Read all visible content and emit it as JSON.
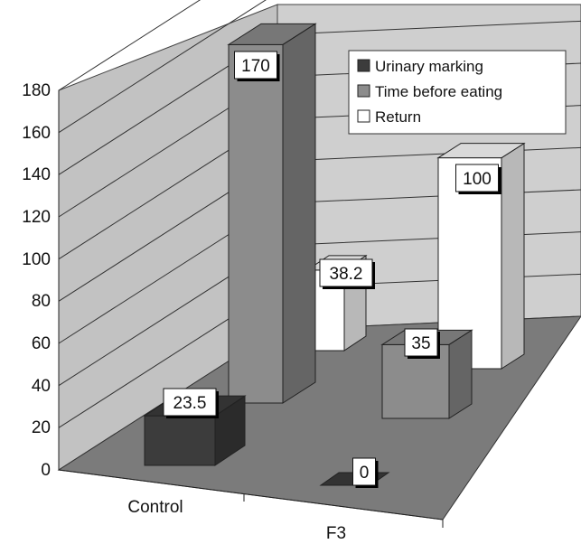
{
  "chart_data": {
    "type": "bar",
    "projection": "3d",
    "categories": [
      "Control",
      "F3"
    ],
    "series": [
      {
        "name": "Urinary marking",
        "values": [
          23.5,
          0
        ],
        "color": "#3c3c3c"
      },
      {
        "name": "Time before eating",
        "values": [
          170,
          35
        ],
        "color": "#8c8c8c"
      },
      {
        "name": "Return",
        "values": [
          38.2,
          100
        ],
        "color": "#ffffff"
      }
    ],
    "y_ticks": [
      "0",
      "20",
      "40",
      "60",
      "80",
      "100",
      "120",
      "140",
      "160",
      "180"
    ],
    "ylim": [
      0,
      180
    ],
    "data_labels": [
      "23.5",
      "0",
      "170",
      "35",
      "38.2",
      "100"
    ],
    "legend_position": "top-right",
    "grid": true,
    "title": "",
    "xlabel": "",
    "ylabel": ""
  }
}
